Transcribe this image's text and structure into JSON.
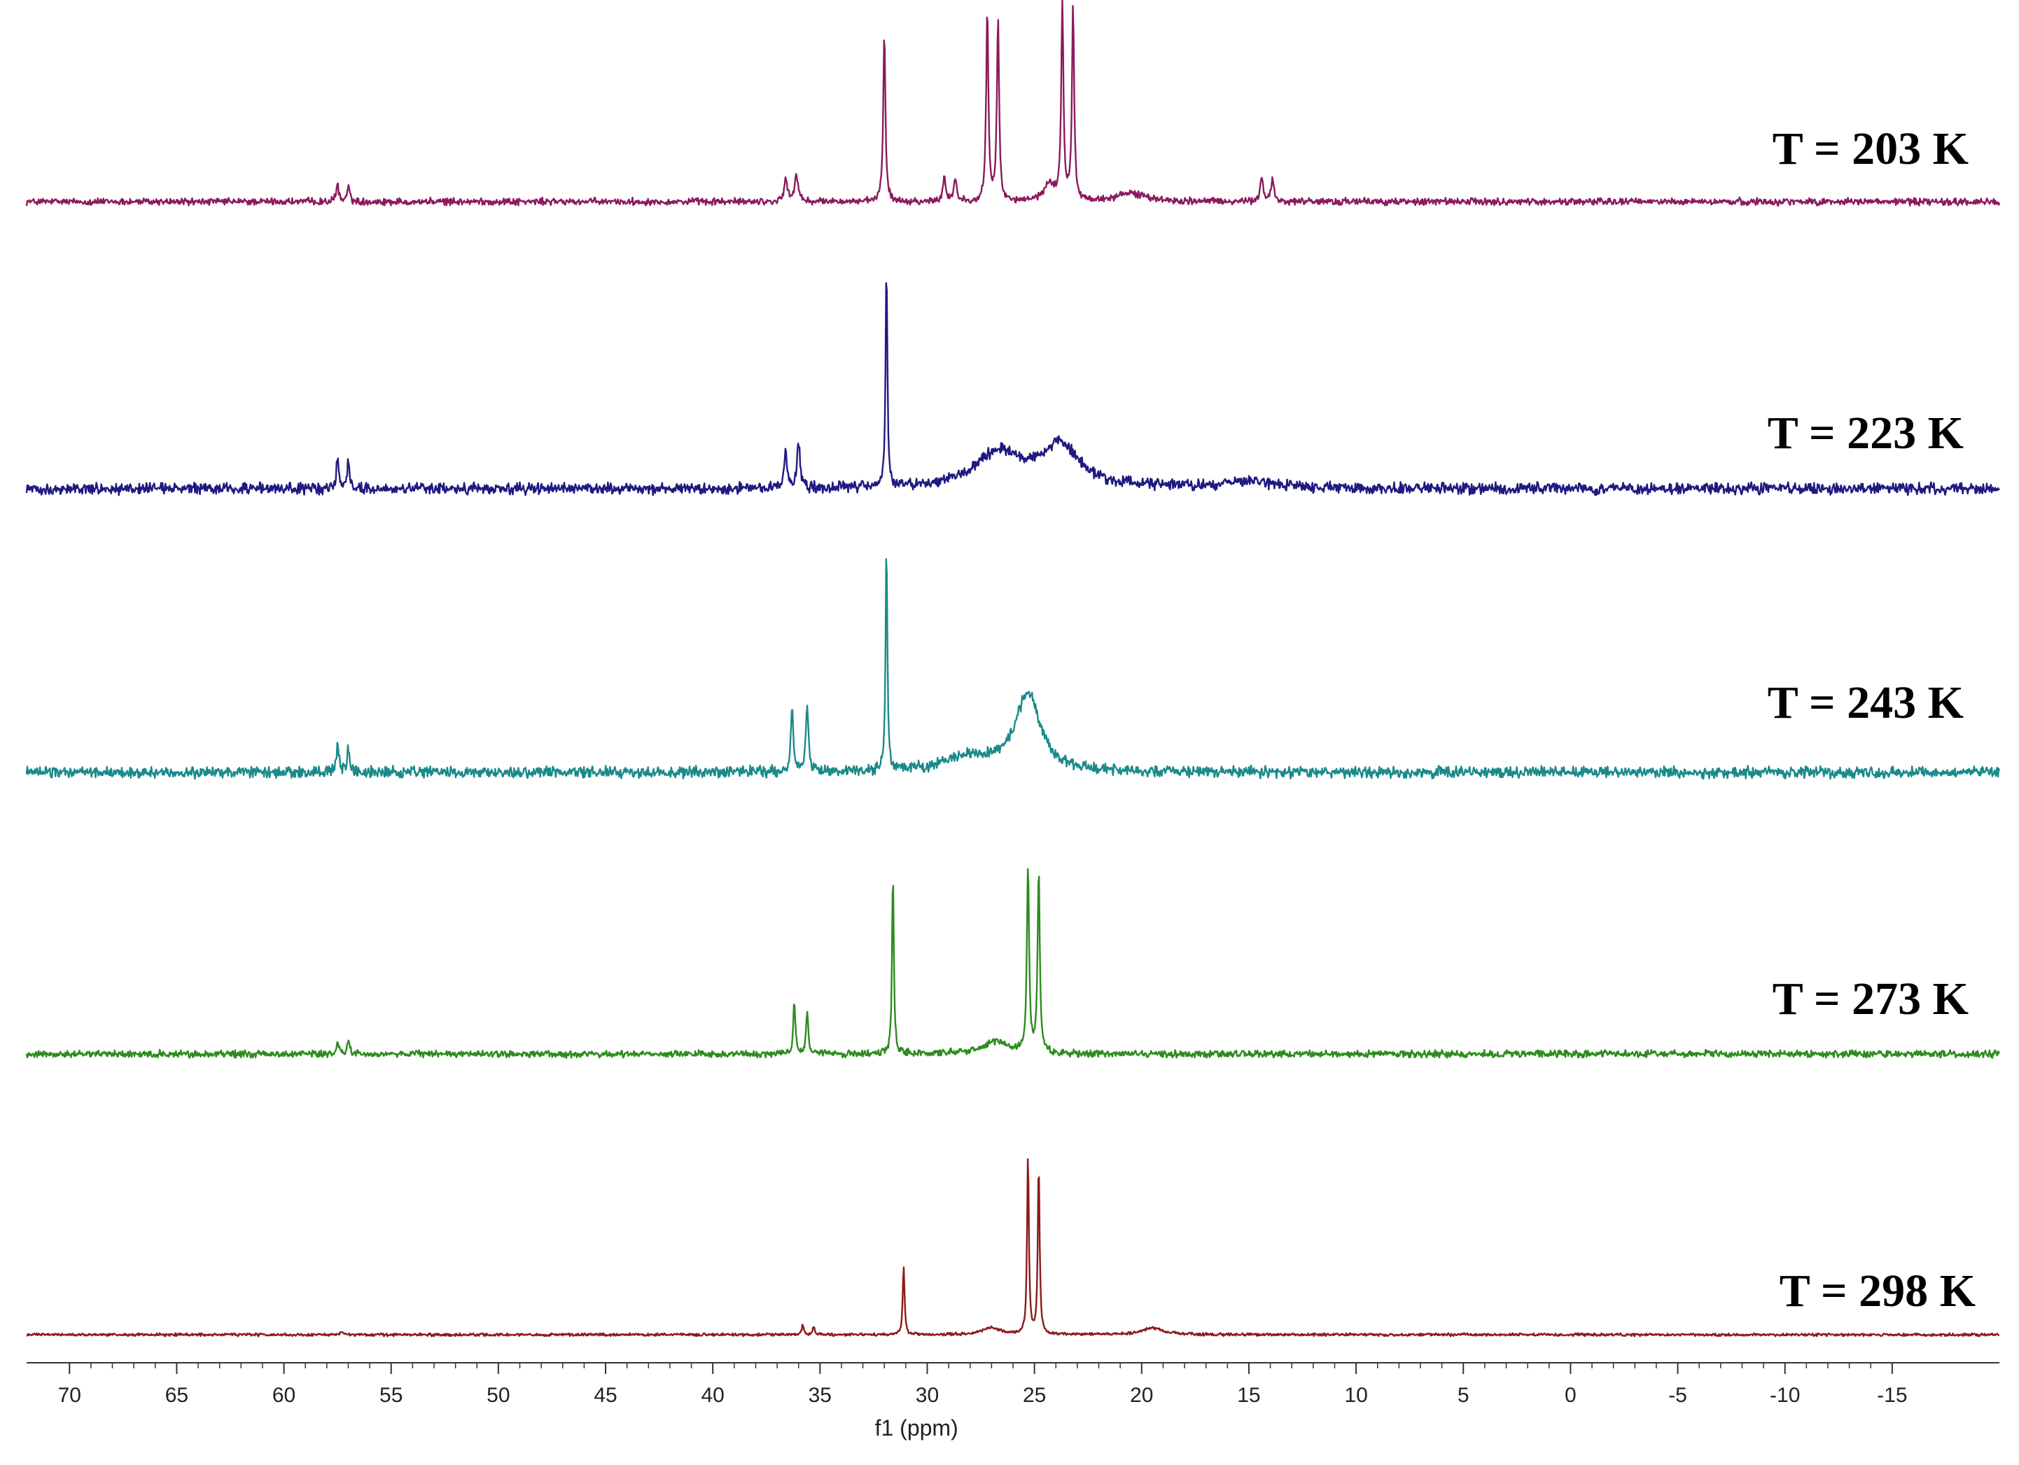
{
  "chart_data": {
    "type": "line",
    "xlabel": "f1 (ppm)",
    "xlim": [
      72,
      -20
    ],
    "x_reversed": true,
    "x_ticks": [
      70,
      65,
      60,
      55,
      50,
      45,
      40,
      35,
      30,
      25,
      20,
      15,
      10,
      5,
      0,
      -5,
      -10,
      -15
    ],
    "grid": false,
    "legend": "labels at right of each trace",
    "series": [
      {
        "name": "T = 203 K",
        "color": "#8b1a5e",
        "noise": 0.05,
        "peaks": [
          {
            "x": 57.5,
            "h": 0.1,
            "w": 0.07
          },
          {
            "x": 57.0,
            "h": 0.09,
            "w": 0.07
          },
          {
            "x": 36.6,
            "h": 0.13,
            "w": 0.09
          },
          {
            "x": 36.1,
            "h": 0.16,
            "w": 0.09
          },
          {
            "x": 32.0,
            "h": 1.0,
            "w": 0.06
          },
          {
            "x": 29.2,
            "h": 0.14,
            "w": 0.08
          },
          {
            "x": 28.7,
            "h": 0.13,
            "w": 0.08
          },
          {
            "x": 27.2,
            "h": 1.12,
            "w": 0.06
          },
          {
            "x": 26.7,
            "h": 1.08,
            "w": 0.06
          },
          {
            "x": 23.7,
            "h": 1.14,
            "w": 0.06
          },
          {
            "x": 23.2,
            "h": 1.12,
            "w": 0.06
          },
          {
            "x": 24.3,
            "h": 0.1,
            "w": 0.3
          },
          {
            "x": 20.5,
            "h": 0.05,
            "w": 0.8
          },
          {
            "x": 14.4,
            "h": 0.14,
            "w": 0.08
          },
          {
            "x": 13.9,
            "h": 0.13,
            "w": 0.08
          }
        ]
      },
      {
        "name": "T = 223 K",
        "color": "#1f1a80",
        "noise": 0.08,
        "peaks": [
          {
            "x": 57.5,
            "h": 0.17,
            "w": 0.07
          },
          {
            "x": 57.0,
            "h": 0.15,
            "w": 0.07
          },
          {
            "x": 36.6,
            "h": 0.22,
            "w": 0.08
          },
          {
            "x": 36.0,
            "h": 0.27,
            "w": 0.08
          },
          {
            "x": 31.9,
            "h": 1.3,
            "w": 0.05
          },
          {
            "x": 26.7,
            "h": 0.2,
            "w": 1.3
          },
          {
            "x": 23.8,
            "h": 0.24,
            "w": 1.1
          },
          {
            "x": 15.0,
            "h": 0.04,
            "w": 1.5
          }
        ]
      },
      {
        "name": "T = 243 K",
        "color": "#1a8a8a",
        "noise": 0.08,
        "peaks": [
          {
            "x": 57.5,
            "h": 0.15,
            "w": 0.07
          },
          {
            "x": 57.0,
            "h": 0.13,
            "w": 0.07
          },
          {
            "x": 36.3,
            "h": 0.37,
            "w": 0.07
          },
          {
            "x": 35.6,
            "h": 0.39,
            "w": 0.07
          },
          {
            "x": 31.9,
            "h": 1.3,
            "w": 0.05
          },
          {
            "x": 28.0,
            "h": 0.08,
            "w": 1.5
          },
          {
            "x": 25.3,
            "h": 0.45,
            "w": 0.7
          }
        ]
      },
      {
        "name": "T = 273 K",
        "color": "#2e8b1f",
        "noise": 0.05,
        "peaks": [
          {
            "x": 57.5,
            "h": 0.06,
            "w": 0.07
          },
          {
            "x": 57.0,
            "h": 0.07,
            "w": 0.07
          },
          {
            "x": 36.2,
            "h": 0.3,
            "w": 0.06
          },
          {
            "x": 35.6,
            "h": 0.24,
            "w": 0.06
          },
          {
            "x": 31.6,
            "h": 1.05,
            "w": 0.05
          },
          {
            "x": 26.8,
            "h": 0.07,
            "w": 0.8
          },
          {
            "x": 25.3,
            "h": 1.09,
            "w": 0.06
          },
          {
            "x": 24.8,
            "h": 1.06,
            "w": 0.06
          }
        ]
      },
      {
        "name": "T = 298 K",
        "color": "#8b1a1a",
        "noise": 0.02,
        "peaks": [
          {
            "x": 57.3,
            "h": 0.02,
            "w": 0.07
          },
          {
            "x": 35.8,
            "h": 0.06,
            "w": 0.06
          },
          {
            "x": 35.3,
            "h": 0.05,
            "w": 0.06
          },
          {
            "x": 31.1,
            "h": 0.4,
            "w": 0.05
          },
          {
            "x": 27.0,
            "h": 0.04,
            "w": 0.5
          },
          {
            "x": 25.3,
            "h": 1.05,
            "w": 0.05
          },
          {
            "x": 24.8,
            "h": 1.0,
            "w": 0.05
          },
          {
            "x": 19.5,
            "h": 0.04,
            "w": 0.6
          }
        ]
      }
    ]
  }
}
